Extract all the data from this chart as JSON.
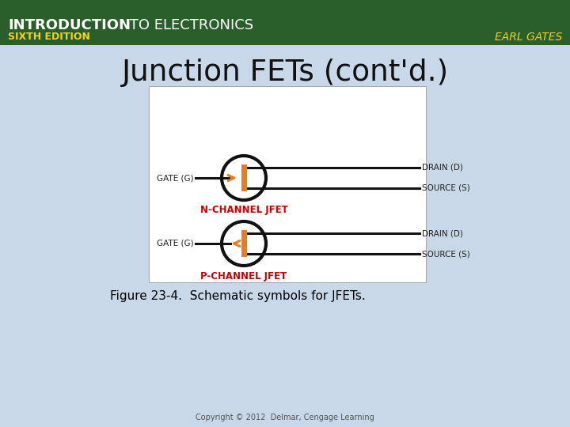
{
  "title": "Junction FETs (cont'd.)",
  "header_bg_color": "#2a5e2a",
  "main_bg_color": "#c8d8e8",
  "diagram_bg_color": "#ffffff",
  "diagram_border_color": "#aaaaaa",
  "title_color": "#111111",
  "title_fontsize": 27,
  "n_channel_label": "N-CHANNEL JFET",
  "p_channel_label": "P-CHANNEL JFET",
  "channel_label_color": "#cc0000",
  "gate_label": "GATE (G)",
  "drain_label": "DRAIN (D)",
  "source_label": "SOURCE (S)",
  "label_color": "#222222",
  "orange_color": "#e87c1e",
  "circle_color": "#111111",
  "line_color": "#111111",
  "figure_caption": "Figure 23-4.  Schematic symbols for JFETs.",
  "caption_color": "#000000",
  "footer_text": "Copyright © 2012  Delmar, Cengage Learning",
  "footer_color": "#555555",
  "header_intro": "INTRODUCTION",
  "header_to": " TO ELECTRONICS",
  "header_edition": "SIXTH EDITION",
  "header_author": "EARL GATES",
  "header_text_color": "#ffffff",
  "header_yellow": "#f5d020"
}
